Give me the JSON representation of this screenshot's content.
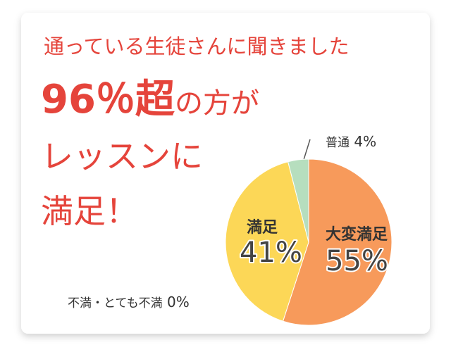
{
  "survey_heading": "通っている生徒さんに聞きました",
  "headline": {
    "big": "96％超",
    "small": "の方が",
    "line2": "レッスンに",
    "line3": "満足！"
  },
  "chart_data": {
    "type": "pie",
    "categories": [
      "大変満足",
      "満足",
      "普通",
      "不満・とても不満"
    ],
    "values": [
      55,
      41,
      4,
      0
    ],
    "value_labels": [
      "55%",
      "41%",
      "4%",
      "0%"
    ],
    "colors": [
      "#F79A5B",
      "#FCD757",
      "#B6DEBE",
      "#CCCCCC"
    ]
  }
}
